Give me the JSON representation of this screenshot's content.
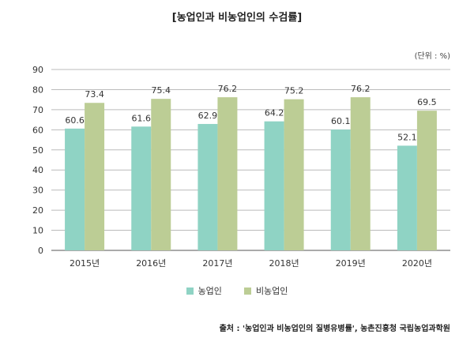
{
  "title": "[농업인과 비농업인의 수검률]",
  "unit": "(단위 : %)",
  "source": "출처 : '농업인과 비농업인의 질병유병률', 농촌진흥청 국립농업과학원",
  "colors": {
    "series1": "#8fd3c4",
    "series2": "#bccd95",
    "grid": "#bbbbbb",
    "axis": "#555555"
  },
  "chart_data": {
    "type": "bar",
    "categories": [
      "2015년",
      "2016년",
      "2017년",
      "2018년",
      "2019년",
      "2020년"
    ],
    "series": [
      {
        "name": "농업인",
        "values": [
          60.6,
          61.6,
          62.9,
          64.2,
          60.1,
          52.1
        ]
      },
      {
        "name": "비농업인",
        "values": [
          73.4,
          75.4,
          76.2,
          75.2,
          76.2,
          69.5
        ]
      }
    ],
    "ylim": [
      0,
      90
    ],
    "yticks": [
      0,
      10,
      20,
      30,
      40,
      50,
      60,
      70,
      80,
      90
    ],
    "grid": true,
    "legend": "bottom"
  }
}
